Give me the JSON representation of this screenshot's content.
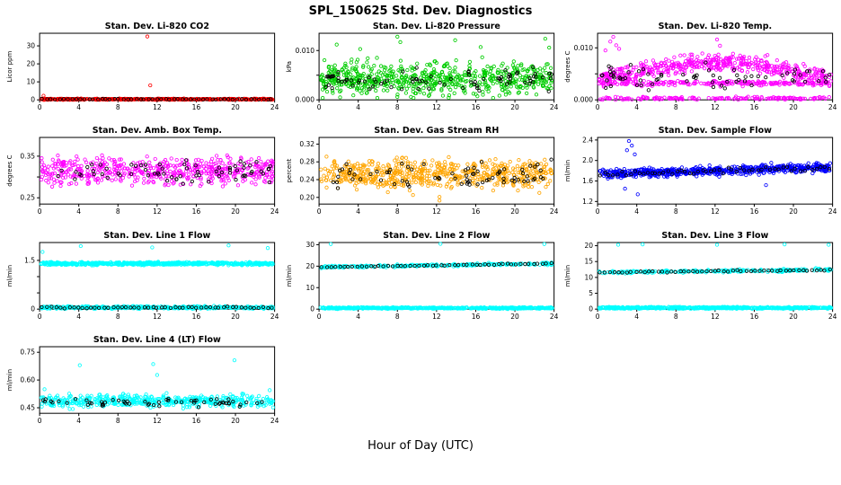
{
  "page": {
    "title": "SPL_150625  Std. Dev. Diagnostics",
    "xlabel": "Hour of Day (UTC)"
  },
  "chart_data": [
    {
      "type": "scatter",
      "title": "Stan. Dev. Li-820 CO2",
      "ylabel": "Licor ppm",
      "xlim": [
        0,
        24
      ],
      "xticks": [
        0,
        4,
        8,
        12,
        16,
        20,
        24
      ],
      "ylim": [
        0,
        37
      ],
      "yticks": [
        0,
        10,
        20,
        30
      ],
      "ytick_labels": [
        "0",
        "10",
        "20",
        "30"
      ],
      "series": [
        {
          "name": "co2-sd",
          "color": "#FF0000",
          "marker": "o",
          "n": 520,
          "dist": {
            "type": "band",
            "center": 0.35,
            "spread": 0.3,
            "clamp": [
              0.03,
              1.2
            ]
          }
        },
        {
          "name": "co2-outliers",
          "color": "#FF0000",
          "marker": "o",
          "points": [
            [
              11.0,
              35.2
            ],
            [
              11.3,
              8.1
            ],
            [
              0.4,
              2.3
            ]
          ]
        },
        {
          "name": "co2-flagged",
          "color": "#000000",
          "marker": "o",
          "n": 55,
          "spaced": true,
          "dist": {
            "type": "band",
            "center": 0.35,
            "spread": 0.18,
            "clamp": [
              0.05,
              0.9
            ]
          }
        }
      ]
    },
    {
      "type": "scatter",
      "title": "Stan. Dev. Li-820 Pressure",
      "ylabel": "kPa",
      "xlim": [
        0,
        24
      ],
      "xticks": [
        0,
        4,
        8,
        12,
        16,
        20,
        24
      ],
      "ylim": [
        0,
        0.0135
      ],
      "yticks": [
        0,
        0.005,
        0.01
      ],
      "ytick_labels": [
        "0.000",
        "",
        "0.010"
      ],
      "series": [
        {
          "name": "pressure-sd",
          "color": "#00CD00",
          "marker": "o",
          "n": 650,
          "dist": {
            "type": "band",
            "center": 0.0042,
            "spread": 0.0028,
            "clamp": [
              0.0004,
              0.0095
            ]
          }
        },
        {
          "name": "pressure-outliers",
          "color": "#00CD00",
          "marker": "o",
          "points": [
            [
              1.8,
              0.0112
            ],
            [
              8.0,
              0.0128
            ],
            [
              8.3,
              0.0117
            ],
            [
              13.9,
              0.0121
            ],
            [
              16.5,
              0.0107
            ],
            [
              23.1,
              0.0124
            ],
            [
              23.5,
              0.0106
            ],
            [
              4.2,
              0.0103
            ]
          ]
        },
        {
          "name": "pressure-flagged",
          "color": "#000000",
          "marker": "o",
          "n": 85,
          "dist": {
            "type": "band",
            "center": 0.004,
            "spread": 0.0017,
            "clamp": [
              0.0008,
              0.008
            ]
          }
        }
      ]
    },
    {
      "type": "scatter",
      "title": "Stan. Dev. Li-820 Temp.",
      "ylabel": "degrees C",
      "xlim": [
        0,
        24
      ],
      "xticks": [
        0,
        4,
        8,
        12,
        16,
        20,
        24
      ],
      "ylim": [
        0,
        0.0128
      ],
      "yticks": [
        0,
        0.005,
        0.01
      ],
      "ytick_labels": [
        "0.000",
        "",
        "0.010"
      ],
      "series": [
        {
          "name": "temp-sd-diurnal",
          "color": "#FF00FF",
          "marker": "o",
          "n": 500,
          "dist": {
            "type": "sine",
            "base": 0.0038,
            "amp": 0.0034,
            "spread": 0.0013,
            "clamp": [
              0.0012,
              0.0115
            ]
          }
        },
        {
          "name": "temp-sd-line",
          "color": "#FF00FF",
          "marker": "o",
          "n": 220,
          "dist": {
            "type": "band",
            "center": 0.0032,
            "spread": 0.0004,
            "clamp": [
              0.0024,
              0.004
            ]
          }
        },
        {
          "name": "temp-sd-zero",
          "color": "#FF00FF",
          "marker": "o",
          "n": 160,
          "dist": {
            "type": "band",
            "center": 0.0003,
            "spread": 0.00025,
            "clamp": [
              0,
              0.0009
            ]
          }
        },
        {
          "name": "temp-outliers",
          "color": "#FF00FF",
          "marker": "o",
          "points": [
            [
              1.3,
              0.0112
            ],
            [
              1.6,
              0.0121
            ],
            [
              1.9,
              0.0105
            ],
            [
              2.2,
              0.0098
            ],
            [
              12.2,
              0.0116
            ],
            [
              12.5,
              0.0104
            ],
            [
              0.8,
              0.0095
            ]
          ]
        },
        {
          "name": "temp-flagged",
          "color": "#000000",
          "marker": "o",
          "n": 70,
          "dist": {
            "type": "band",
            "center": 0.0045,
            "spread": 0.002,
            "clamp": [
              0.0012,
              0.009
            ]
          }
        }
      ]
    },
    {
      "type": "scatter",
      "title": "Stan. Dev. Amb. Box Temp.",
      "ylabel": "degrees C",
      "xlim": [
        0,
        24
      ],
      "xticks": [
        0,
        4,
        8,
        12,
        16,
        20,
        24
      ],
      "ylim": [
        0.235,
        0.395
      ],
      "yticks": [
        0.25,
        0.3,
        0.35
      ],
      "ytick_labels": [
        "0.25",
        "",
        "0.35"
      ],
      "series": [
        {
          "name": "ambtemp-sd",
          "color": "#FF00FF",
          "marker": "o",
          "n": 540,
          "dist": {
            "type": "band",
            "center": 0.315,
            "spread": 0.028,
            "clamp": [
              0.245,
              0.385
            ]
          }
        },
        {
          "name": "ambtemp-flagged",
          "color": "#000000",
          "marker": "o",
          "n": 70,
          "dist": {
            "type": "band",
            "center": 0.315,
            "spread": 0.022,
            "clamp": [
              0.25,
              0.38
            ]
          }
        }
      ]
    },
    {
      "type": "scatter",
      "title": "Stan. Dev. Gas Stream RH",
      "ylabel": "percent",
      "xlim": [
        0,
        24
      ],
      "xticks": [
        0,
        4,
        8,
        12,
        16,
        20,
        24
      ],
      "ylim": [
        0.185,
        0.335
      ],
      "yticks": [
        0.2,
        0.24,
        0.28,
        0.32
      ],
      "ytick_labels": [
        "0.20",
        "0.24",
        "0.28",
        "0.32"
      ],
      "series": [
        {
          "name": "rh-sd",
          "color": "#FFA500",
          "marker": "o",
          "n": 600,
          "dist": {
            "type": "band",
            "center": 0.252,
            "spread": 0.028,
            "clamp": [
              0.192,
              0.325
            ]
          }
        },
        {
          "name": "rh-outliers",
          "color": "#FFA500",
          "marker": "o",
          "points": [
            [
              12.3,
              0.193
            ]
          ]
        },
        {
          "name": "rh-flagged",
          "color": "#000000",
          "marker": "o",
          "n": 75,
          "dist": {
            "type": "band",
            "center": 0.251,
            "spread": 0.02,
            "clamp": [
              0.2,
              0.31
            ]
          }
        }
      ]
    },
    {
      "type": "scatter",
      "title": "Stan. Dev. Sample Flow",
      "ylabel": "ml/min",
      "xlim": [
        0,
        24
      ],
      "xticks": [
        0,
        4,
        8,
        12,
        16,
        20,
        24
      ],
      "ylim": [
        1.15,
        2.45
      ],
      "yticks": [
        1.2,
        1.6,
        2.0,
        2.4
      ],
      "ytick_labels": [
        "1.2",
        "1.6",
        "2.0",
        "2.4"
      ],
      "series": [
        {
          "name": "sampleflow-sd",
          "color": "#0000FF",
          "marker": "o",
          "n": 650,
          "dist": {
            "type": "trend",
            "start": 1.73,
            "end": 1.87,
            "spread": 0.07,
            "clamp": [
              1.5,
              2.15
            ]
          }
        },
        {
          "name": "sampleflow-outliers",
          "color": "#0000FF",
          "marker": "o",
          "points": [
            [
              3.2,
              2.38
            ],
            [
              3.5,
              2.29
            ],
            [
              3.0,
              2.2
            ],
            [
              3.8,
              2.12
            ],
            [
              4.1,
              1.34
            ],
            [
              2.8,
              1.45
            ],
            [
              17.2,
              1.52
            ]
          ]
        },
        {
          "name": "sampleflow-flagged",
          "color": "#000000",
          "marker": "o",
          "n": 55,
          "spaced": true,
          "dist": {
            "type": "trend",
            "start": 1.73,
            "end": 1.87,
            "spread": 0.05,
            "clamp": [
              1.6,
              2.0
            ]
          }
        }
      ]
    },
    {
      "type": "scatter",
      "title": "Stan. Dev. Line 1 Flow",
      "ylabel": "ml/min",
      "xlim": [
        0,
        24
      ],
      "xticks": [
        0,
        4,
        8,
        12,
        16,
        20,
        24
      ],
      "ylim": [
        0,
        2.05
      ],
      "yticks": [
        0,
        0.5,
        1.0,
        1.5
      ],
      "ytick_labels": [
        "0",
        "",
        "",
        "1.5"
      ],
      "series": [
        {
          "name": "line1-sd-high",
          "color": "#00FFFF",
          "marker": "o",
          "n": 620,
          "dist": {
            "type": "band",
            "center": 1.4,
            "spread": 0.035,
            "clamp": [
              1.3,
              1.52
            ]
          }
        },
        {
          "name": "line1-sd-low",
          "color": "#00FFFF",
          "marker": "o",
          "n": 430,
          "dist": {
            "type": "band",
            "center": 0.05,
            "spread": 0.035,
            "clamp": [
              0.005,
              0.14
            ]
          }
        },
        {
          "name": "line1-outliers",
          "color": "#00FFFF",
          "marker": "o",
          "points": [
            [
              0.3,
              1.76
            ],
            [
              4.2,
              1.94
            ],
            [
              11.5,
              1.9
            ],
            [
              19.3,
              1.96
            ],
            [
              23.3,
              1.88
            ]
          ]
        },
        {
          "name": "line1-flagged",
          "color": "#000000",
          "marker": "o",
          "n": 53,
          "spaced": true,
          "dist": {
            "type": "band",
            "center": 0.05,
            "spread": 0.02,
            "clamp": [
              0.01,
              0.1
            ]
          }
        }
      ]
    },
    {
      "type": "scatter",
      "title": "Stan. Dev. Line 2 Flow",
      "ylabel": "ml/min",
      "xlim": [
        0,
        24
      ],
      "xticks": [
        0,
        4,
        8,
        12,
        16,
        20,
        24
      ],
      "ylim": [
        0,
        31
      ],
      "yticks": [
        0,
        10,
        20,
        30
      ],
      "ytick_labels": [
        "0",
        "10",
        "20",
        "30"
      ],
      "series": [
        {
          "name": "line2-sd-low",
          "color": "#00FFFF",
          "marker": "o",
          "n": 540,
          "dist": {
            "type": "band",
            "center": 0.5,
            "spread": 0.3,
            "clamp": [
              0.05,
              1.6
            ]
          }
        },
        {
          "name": "line2-sd-high",
          "color": "#00FFFF",
          "marker": "o",
          "n": 260,
          "dist": {
            "type": "trend",
            "start": 19.6,
            "end": 21.2,
            "spread": 0.45,
            "clamp": [
              18.5,
              22.5
            ]
          }
        },
        {
          "name": "line2-outliers",
          "color": "#00FFFF",
          "marker": "o",
          "points": [
            [
              1.2,
              30.3
            ],
            [
              12.4,
              30.4
            ],
            [
              23.0,
              30.3
            ]
          ]
        },
        {
          "name": "line2-flagged",
          "color": "#000000",
          "marker": "o",
          "n": 53,
          "spaced": true,
          "dist": {
            "type": "trend",
            "start": 19.6,
            "end": 21.2,
            "spread": 0.25,
            "clamp": [
              19.0,
              22.0
            ]
          }
        }
      ]
    },
    {
      "type": "scatter",
      "title": "Stan. Dev. Line 3 Flow",
      "ylabel": "ml/min",
      "xlim": [
        0,
        24
      ],
      "xticks": [
        0,
        4,
        8,
        12,
        16,
        20,
        24
      ],
      "ylim": [
        0,
        21
      ],
      "yticks": [
        0,
        5,
        10,
        15,
        20
      ],
      "ytick_labels": [
        "0",
        "5",
        "10",
        "15",
        "20"
      ],
      "series": [
        {
          "name": "line3-sd-low",
          "color": "#00FFFF",
          "marker": "o",
          "n": 540,
          "dist": {
            "type": "band",
            "center": 0.4,
            "spread": 0.25,
            "clamp": [
              0.05,
              1.2
            ]
          }
        },
        {
          "name": "line3-sd-high",
          "color": "#00FFFF",
          "marker": "o",
          "n": 260,
          "dist": {
            "type": "trend",
            "start": 11.6,
            "end": 12.4,
            "spread": 0.35,
            "clamp": [
              10.8,
              13.4
            ]
          }
        },
        {
          "name": "line3-outliers",
          "color": "#00FFFF",
          "marker": "o",
          "points": [
            [
              2.1,
              20.3
            ],
            [
              4.6,
              20.4
            ],
            [
              12.2,
              20.3
            ],
            [
              19.1,
              20.4
            ],
            [
              23.6,
              20.3
            ]
          ]
        },
        {
          "name": "line3-flagged",
          "color": "#000000",
          "marker": "o",
          "n": 53,
          "spaced": true,
          "dist": {
            "type": "trend",
            "start": 11.6,
            "end": 12.4,
            "spread": 0.2,
            "clamp": [
              11.0,
              13.0
            ]
          }
        }
      ]
    },
    {
      "type": "scatter",
      "title": "Stan. Dev. Line 4 (LT) Flow",
      "ylabel": "ml/min",
      "xlim": [
        0,
        24
      ],
      "xticks": [
        0,
        4,
        8,
        12,
        16,
        20,
        24
      ],
      "ylim": [
        0.42,
        0.78
      ],
      "yticks": [
        0.45,
        0.6,
        0.75
      ],
      "ytick_labels": [
        "0.45",
        "0.60",
        "0.75"
      ],
      "series": [
        {
          "name": "line4-sd",
          "color": "#00FFFF",
          "marker": "o",
          "n": 470,
          "dist": {
            "type": "band",
            "center": 0.487,
            "spread": 0.028,
            "clamp": [
              0.432,
              0.6
            ]
          }
        },
        {
          "name": "line4-outliers",
          "color": "#00FFFF",
          "marker": "o",
          "points": [
            [
              4.1,
              0.68
            ],
            [
              11.6,
              0.686
            ],
            [
              12.0,
              0.627
            ],
            [
              19.9,
              0.707
            ],
            [
              23.5,
              0.545
            ],
            [
              0.5,
              0.55
            ]
          ]
        },
        {
          "name": "line4-flagged",
          "color": "#000000",
          "marker": "o",
          "n": 58,
          "dist": {
            "type": "band",
            "center": 0.477,
            "spread": 0.02,
            "clamp": [
              0.44,
              0.55
            ]
          }
        }
      ]
    }
  ]
}
